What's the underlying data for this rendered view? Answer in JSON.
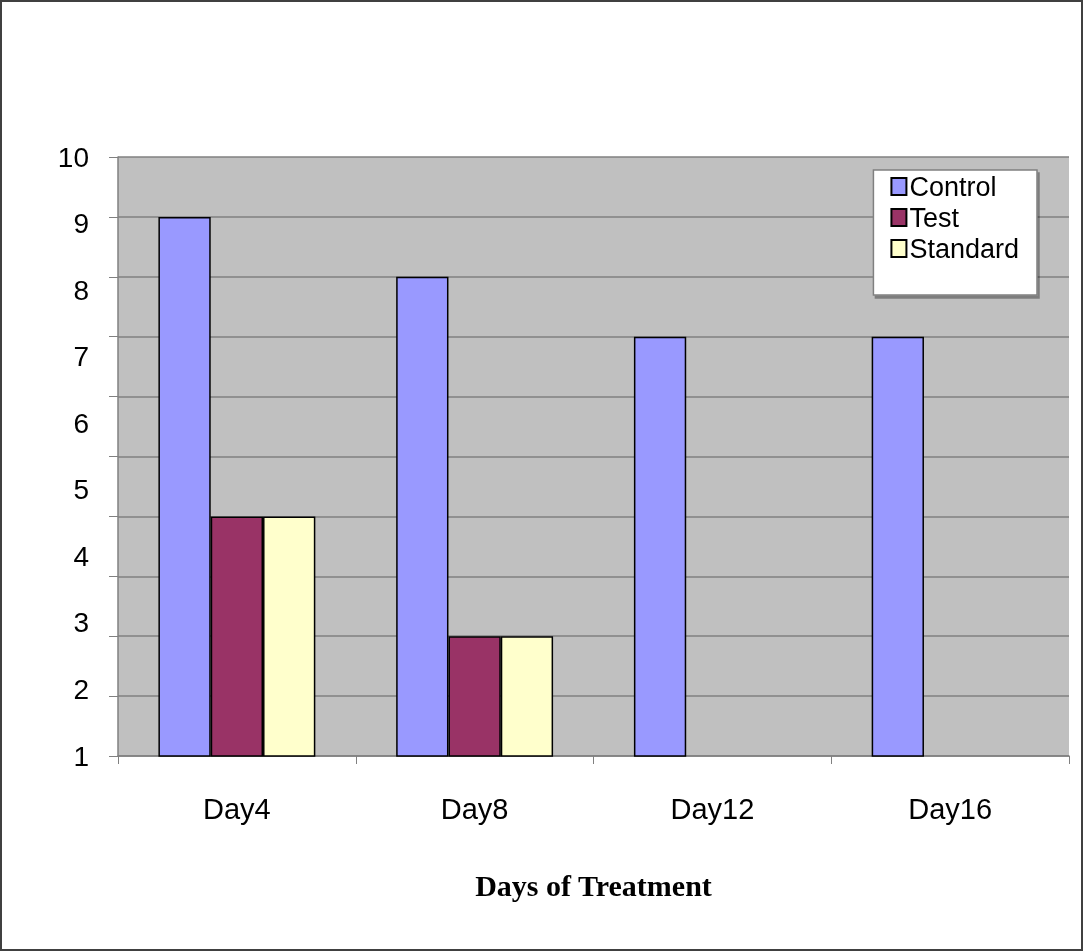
{
  "chart_data": {
    "type": "bar",
    "xlabel": "Days of Treatment",
    "categories": [
      "Day4",
      "Day8",
      "Day12",
      "Day16"
    ],
    "series": [
      {
        "name": "Control",
        "color": "#9999ff",
        "values": [
          9.1,
          8.2,
          7.3,
          7.3
        ]
      },
      {
        "name": "Test",
        "color": "#993366",
        "values": [
          4.6,
          2.8,
          null,
          null
        ]
      },
      {
        "name": "Standard",
        "color": "#ffffcc",
        "values": [
          4.6,
          2.8,
          null,
          null
        ]
      }
    ],
    "ylim": [
      1,
      10
    ],
    "yticks": [
      1,
      {
        "value": 1.9,
        "label": null
      },
      2,
      {
        "value": 2.8,
        "label": null
      },
      3,
      {
        "value": 3.7,
        "label": null
      },
      4,
      {
        "value": 4.6,
        "label": null
      },
      5,
      {
        "value": 5.5,
        "label": null
      },
      6,
      {
        "value": 6.4,
        "label": null
      },
      7,
      {
        "value": 7.3,
        "label": null
      },
      8,
      {
        "value": 8.2,
        "label": null
      },
      9,
      {
        "value": 9.1,
        "label": null
      },
      10
    ],
    "grid": "y",
    "legend": "top right"
  }
}
